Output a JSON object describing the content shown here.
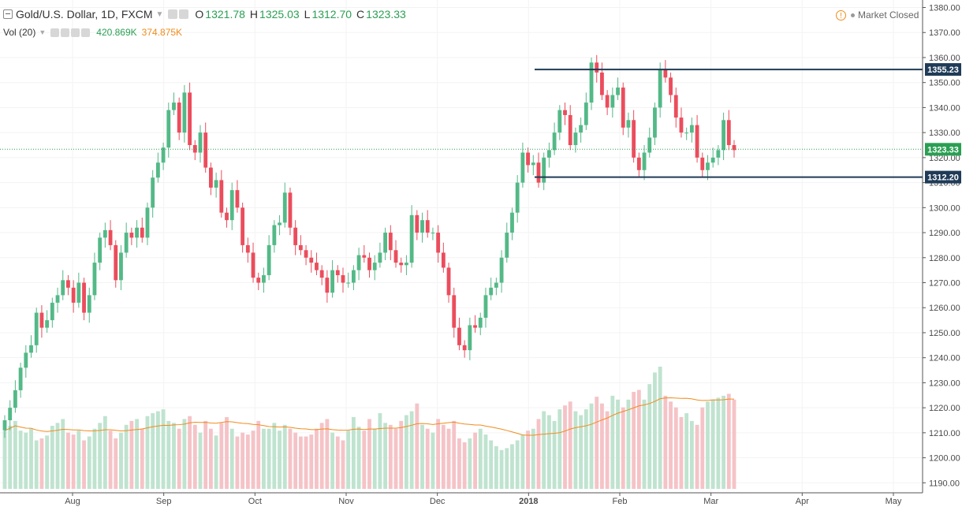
{
  "header": {
    "symbol": "Gold/U.S. Dollar, 1D, FXCM",
    "open_label": "O",
    "open": "1321.78",
    "high_label": "H",
    "high": "1325.03",
    "low_label": "L",
    "low": "1312.70",
    "close_label": "C",
    "close": "1323.33"
  },
  "volume": {
    "label": "Vol (20)",
    "value": "420.869K",
    "ma": "374.875K"
  },
  "status": {
    "text": "Market Closed"
  },
  "colors": {
    "up": "#53b987",
    "down": "#eb4d5c",
    "vol_up": "#bfe3cf",
    "vol_down": "#f5c3c7",
    "vol_ma": "#f08c1c",
    "level": "#1f3b57",
    "last": "#2a9f53"
  },
  "chart_data": {
    "type": "candlestick",
    "title": "Gold/U.S. Dollar, 1D, FXCM",
    "x_ticks": [
      "Aug",
      "Sep",
      "Oct",
      "Nov",
      "Dec",
      "2018",
      "Feb",
      "Mar",
      "Apr",
      "May"
    ],
    "y_ticks": [
      1190,
      1200,
      1210,
      1220,
      1230,
      1240,
      1250,
      1260,
      1270,
      1280,
      1290,
      1300,
      1310,
      1320,
      1330,
      1340,
      1350,
      1360,
      1370,
      1380
    ],
    "ylim": [
      1186,
      1383
    ],
    "closes": [
      1215,
      1220,
      1227,
      1236,
      1242,
      1245,
      1258,
      1252,
      1255,
      1262,
      1265,
      1271,
      1268,
      1262,
      1270,
      1258,
      1265,
      1278,
      1288,
      1291,
      1285,
      1271,
      1282,
      1290,
      1288,
      1292,
      1288,
      1300,
      1312,
      1318,
      1324,
      1339,
      1342,
      1330,
      1346,
      1325,
      1322,
      1330,
      1316,
      1308,
      1311,
      1298,
      1295,
      1307,
      1300,
      1285,
      1282,
      1272,
      1270,
      1273,
      1285,
      1293,
      1294,
      1306,
      1292,
      1285,
      1283,
      1280,
      1278,
      1275,
      1272,
      1266,
      1275,
      1273,
      1270,
      1270,
      1275,
      1281,
      1280,
      1275,
      1278,
      1282,
      1290,
      1283,
      1278,
      1277,
      1278,
      1297,
      1290,
      1295,
      1290,
      1290,
      1282,
      1276,
      1265,
      1252,
      1245,
      1243,
      1253,
      1252,
      1256,
      1265,
      1268,
      1270,
      1280,
      1290,
      1298,
      1310,
      1322,
      1317,
      1318,
      1310,
      1320,
      1323,
      1330,
      1339,
      1337,
      1325,
      1330,
      1333,
      1342,
      1358,
      1354,
      1345,
      1340,
      1345,
      1348,
      1332,
      1335,
      1320,
      1315,
      1322,
      1328,
      1340,
      1355,
      1352,
      1345,
      1336,
      1330,
      1330,
      1333,
      1320,
      1315,
      1318,
      1320,
      1323,
      1335,
      1325,
      1323
    ],
    "volumes": [
      60,
      65,
      70,
      60,
      58,
      62,
      50,
      52,
      55,
      65,
      68,
      72,
      58,
      56,
      60,
      50,
      54,
      62,
      68,
      75,
      60,
      52,
      58,
      66,
      70,
      72,
      62,
      75,
      78,
      80,
      82,
      70,
      68,
      62,
      72,
      75,
      66,
      58,
      70,
      62,
      55,
      68,
      74,
      62,
      54,
      58,
      56,
      60,
      70,
      62,
      62,
      68,
      60,
      66,
      62,
      58,
      54,
      54,
      56,
      62,
      68,
      72,
      58,
      54,
      50,
      60,
      74,
      64,
      60,
      72,
      62,
      78,
      68,
      66,
      62,
      70,
      76,
      80,
      88,
      66,
      62,
      58,
      72,
      66,
      62,
      70,
      52,
      48,
      52,
      58,
      62,
      56,
      50,
      44,
      40,
      42,
      46,
      50,
      56,
      60,
      62,
      72,
      80,
      76,
      70,
      82,
      86,
      90,
      80,
      76,
      82,
      88,
      95,
      88,
      80,
      96,
      92,
      84,
      92,
      100,
      102,
      92,
      108,
      120,
      126,
      96,
      90,
      84,
      74,
      78,
      70,
      66,
      84,
      90,
      92,
      94,
      96,
      98,
      92
    ],
    "vol_ma_label": "374.875K",
    "horizontal_levels": [
      {
        "value": 1355.23,
        "label": "1355.23"
      },
      {
        "value": 1312.2,
        "label": "1312.20"
      }
    ],
    "last_price": {
      "value": 1323.33,
      "label": "1323.33"
    }
  }
}
